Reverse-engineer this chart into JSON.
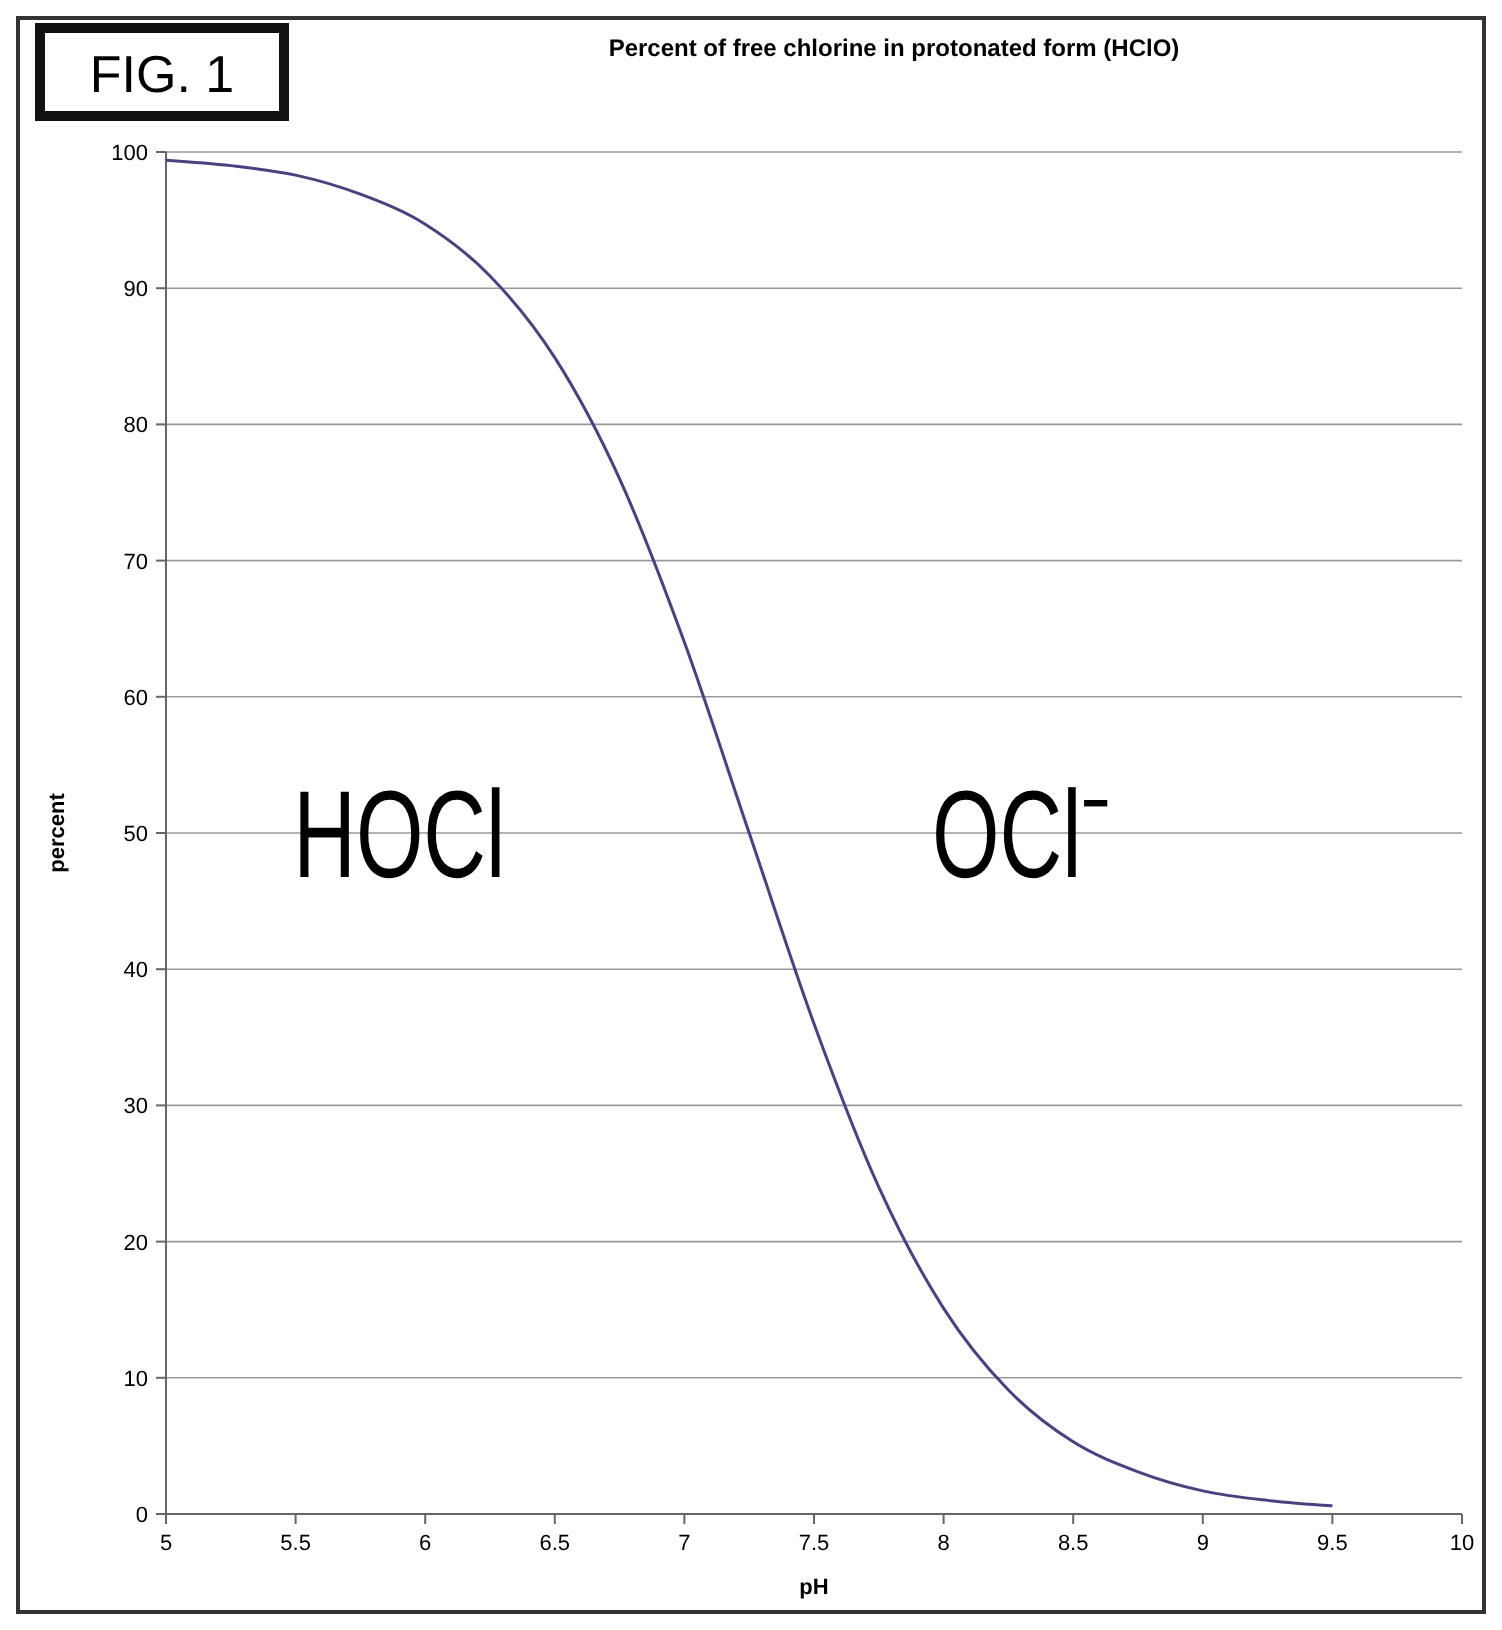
{
  "chart_data": {
    "type": "line",
    "title": "Percent of free chlorine in protonated form (HClO)",
    "xlabel": "pH",
    "ylabel": "percent",
    "annotations": [
      "FIG. 1",
      "HOCl",
      "OCl⁻"
    ],
    "x": [
      5,
      5.25,
      5.5,
      5.75,
      6,
      6.25,
      6.5,
      6.75,
      7,
      7.25,
      7.5,
      7.75,
      8,
      8.25,
      8.5,
      8.75,
      9,
      9.25,
      9.5
    ],
    "series": [
      {
        "color": "#4b3f8a",
        "values": [
          99.4,
          99.0,
          98.3,
          96.9,
          94.7,
          90.9,
          84.9,
          76.0,
          64.0,
          50.0,
          36.0,
          24.0,
          15.1,
          9.1,
          5.3,
          3.1,
          1.7,
          1.0,
          0.6
        ]
      }
    ],
    "xlim": [
      5,
      10
    ],
    "xticks": [
      5,
      5.5,
      6,
      6.5,
      7,
      7.5,
      8,
      8.5,
      9,
      9.5,
      10
    ],
    "ylim": [
      0,
      100
    ],
    "yticks": [
      0,
      10,
      20,
      30,
      40,
      50,
      60,
      70,
      80,
      90,
      100
    ],
    "grid": "y",
    "marker": "none",
    "line_style": "solid"
  }
}
